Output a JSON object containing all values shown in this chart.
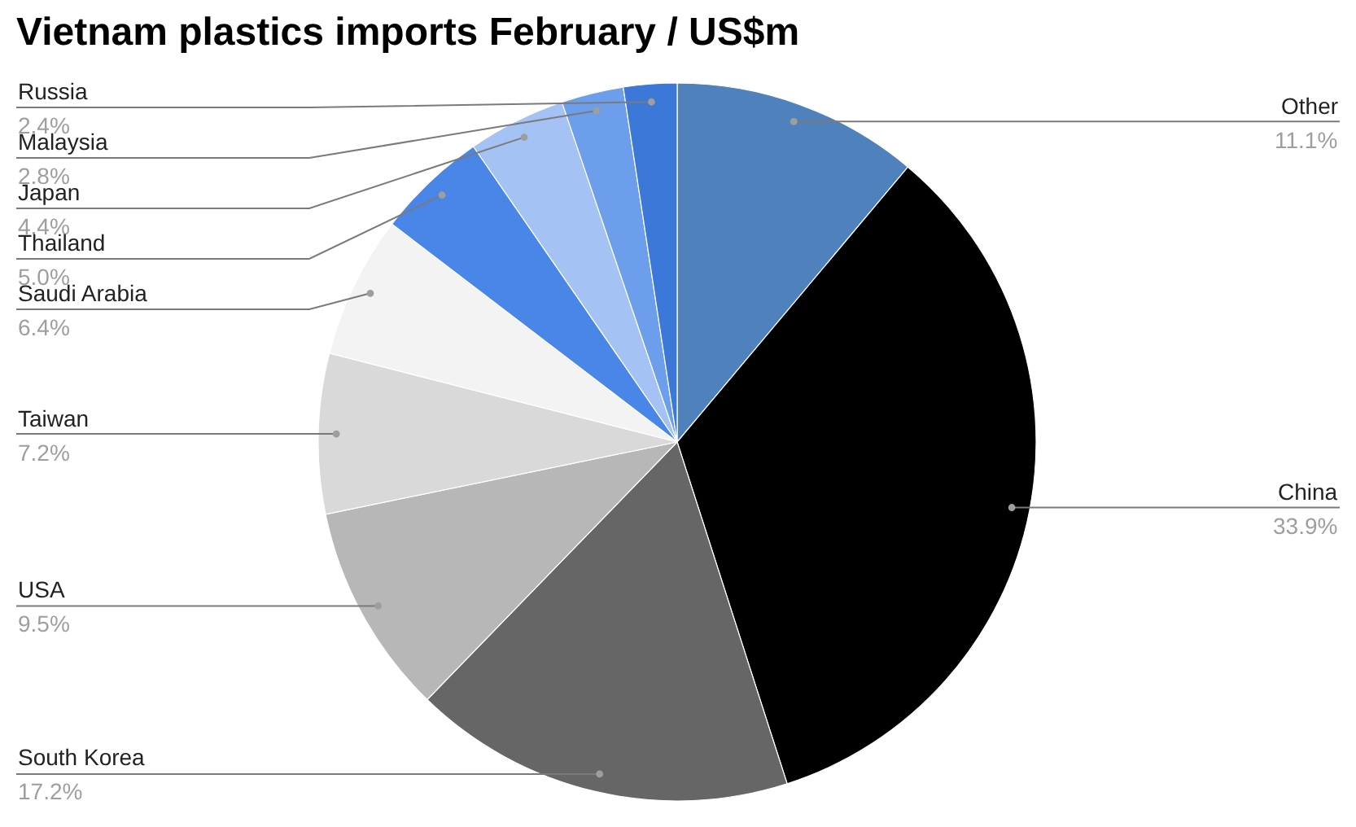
{
  "chart_data": {
    "type": "pie",
    "title": "Vietnam plastics imports February / US$m",
    "categories": [
      "Other",
      "China",
      "South Korea",
      "USA",
      "Taiwan",
      "Saudi Arabia",
      "Thailand",
      "Japan",
      "Malaysia",
      "Russia"
    ],
    "values": [
      11.1,
      33.9,
      17.2,
      9.5,
      7.2,
      6.4,
      5.0,
      4.4,
      2.8,
      2.4
    ],
    "colors": [
      "#4f81bd",
      "#000000",
      "#666666",
      "#b7b7b7",
      "#d9d9d9",
      "#f3f3f3",
      "#4a86e8",
      "#a4c2f4",
      "#6d9eeb",
      "#3c78d8"
    ],
    "value_labels": [
      "11.1%",
      "33.9%",
      "17.2%",
      "9.5%",
      "7.2%",
      "6.4%",
      "5.0%",
      "4.4%",
      "2.8%",
      "2.4%"
    ]
  }
}
